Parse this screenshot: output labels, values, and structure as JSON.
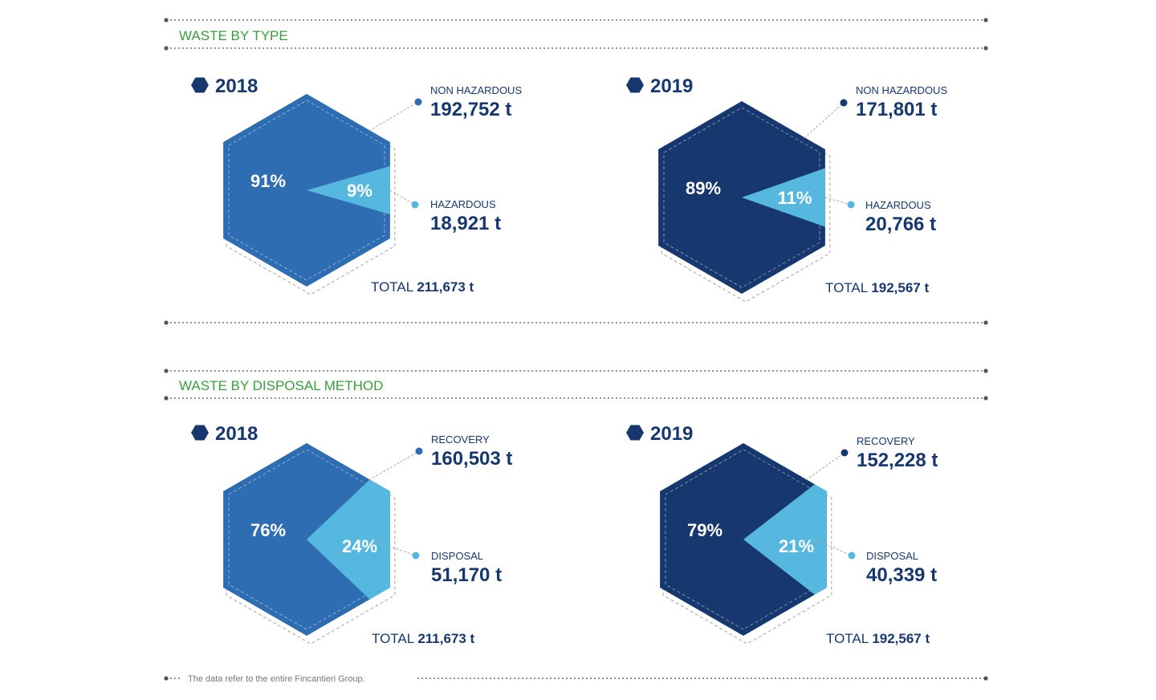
{
  "colors": {
    "green": "#3a9c3c",
    "navy": "#17386f",
    "medium_blue": "#2f6db3",
    "light_blue": "#56b8df",
    "divider": "#555555",
    "dashed_outline": "#b8b8b8"
  },
  "sections": [
    {
      "title": "WASTE BY TYPE"
    },
    {
      "title": "WASTE BY DISPOSAL METHOD"
    }
  ],
  "chart_data": [
    {
      "type": "pie",
      "shape": "hexagon",
      "title": "2018",
      "color": "medium_blue",
      "total_label": "TOTAL",
      "total_value": "211,673 t",
      "slices": [
        {
          "label": "NON HAZARDOUS",
          "value": 192752,
          "value_text": "192,752 t",
          "percent_text": "91%",
          "color": "medium_blue"
        },
        {
          "label": "HAZARDOUS",
          "value": 18921,
          "value_text": "18,921 t",
          "percent_text": "9%",
          "color": "light_blue"
        }
      ]
    },
    {
      "type": "pie",
      "shape": "hexagon",
      "title": "2019",
      "color": "navy",
      "total_label": "TOTAL",
      "total_value": "192,567 t",
      "slices": [
        {
          "label": "NON HAZARDOUS",
          "value": 171801,
          "value_text": "171,801 t",
          "percent_text": "89%",
          "color": "navy"
        },
        {
          "label": "HAZARDOUS",
          "value": 20766,
          "value_text": "20,766 t",
          "percent_text": "11%",
          "color": "light_blue"
        }
      ]
    },
    {
      "type": "pie",
      "shape": "hexagon",
      "title": "2018",
      "color": "medium_blue",
      "total_label": "TOTAL",
      "total_value": "211,673 t",
      "slices": [
        {
          "label": "RECOVERY",
          "value": 160503,
          "value_text": "160,503 t",
          "percent_text": "76%",
          "color": "medium_blue"
        },
        {
          "label": "DISPOSAL",
          "value": 51170,
          "value_text": "51,170 t",
          "percent_text": "24%",
          "color": "light_blue"
        }
      ]
    },
    {
      "type": "pie",
      "shape": "hexagon",
      "title": "2019",
      "color": "navy",
      "total_label": "TOTAL",
      "total_value": "192,567 t",
      "slices": [
        {
          "label": "RECOVERY",
          "value": 152228,
          "value_text": "152,228 t",
          "percent_text": "79%",
          "color": "navy"
        },
        {
          "label": "DISPOSAL",
          "value": 40339,
          "value_text": "40,339 t",
          "percent_text": "21%",
          "color": "light_blue"
        }
      ]
    }
  ],
  "footnote": "The data refer to the entire Fincantieri Group."
}
